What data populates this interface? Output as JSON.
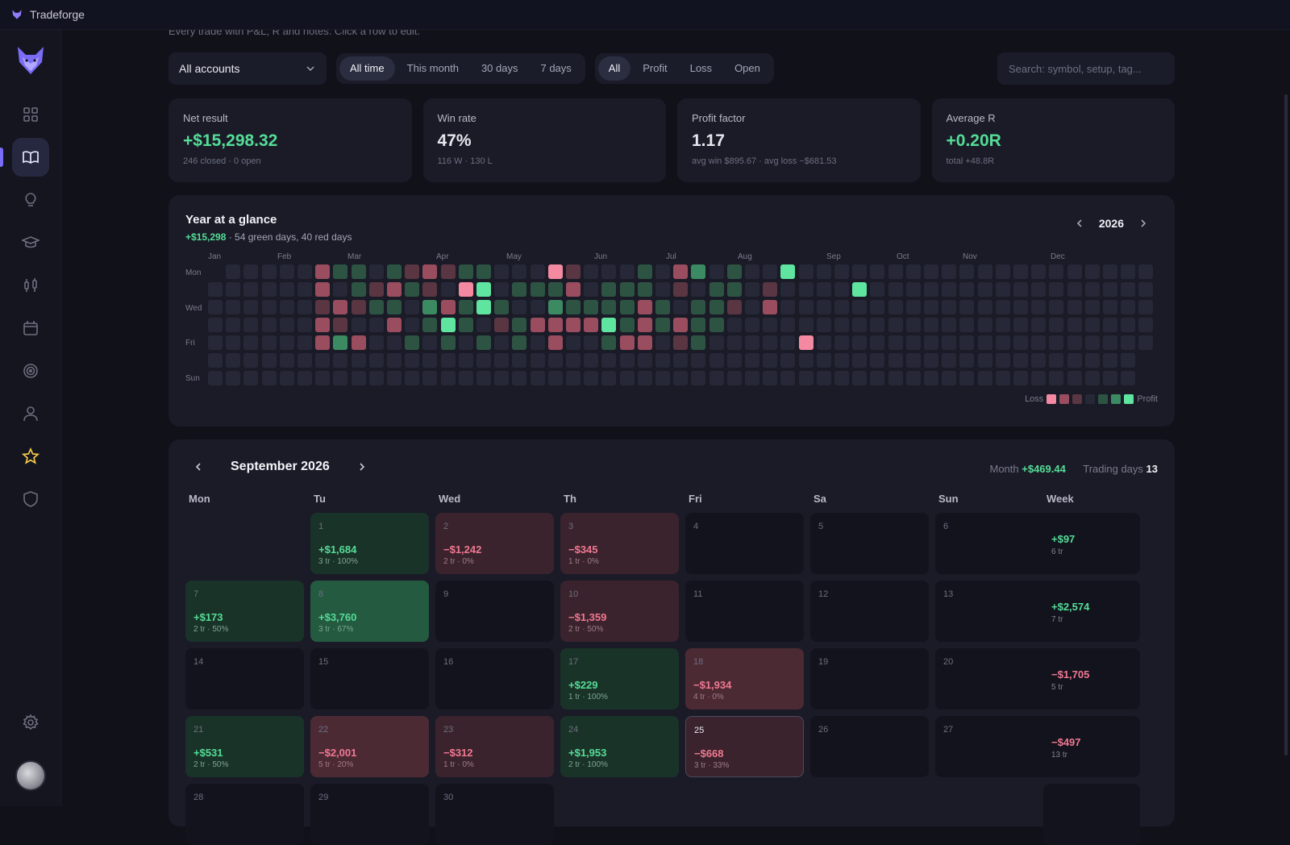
{
  "app": {
    "title": "Tradeforge"
  },
  "page": {
    "subtitle": "Every trade with P&L, R and notes. Click a row to edit."
  },
  "filters": {
    "account": "All accounts",
    "periods": [
      "All time",
      "This month",
      "30 days",
      "7 days"
    ],
    "period_selected": "All time",
    "outcomes": [
      "All",
      "Profit",
      "Loss",
      "Open"
    ],
    "outcome_selected": "All",
    "search_placeholder": "Search: symbol, setup, tag..."
  },
  "stats": [
    {
      "label": "Net result",
      "value": "+$15,298.32",
      "sub": "246 closed · 0 open",
      "tone": "green"
    },
    {
      "label": "Win rate",
      "value": "47%",
      "sub": "116 W · 130 L",
      "tone": "plain"
    },
    {
      "label": "Profit factor",
      "value": "1.17",
      "sub": "avg win $895.67 · avg loss −$681.53",
      "tone": "plain"
    },
    {
      "label": "Average R",
      "value": "+0.20R",
      "sub": "total +48.8R",
      "tone": "green"
    }
  ],
  "year": {
    "title": "Year at a glance",
    "total": "+$15,298",
    "summary": " · 54 green days, 40 red days",
    "year": "2026",
    "months": [
      "Jan",
      "Feb",
      "Mar",
      "Apr",
      "May",
      "Jun",
      "Jul",
      "Aug",
      "Sep",
      "Oct",
      "Nov",
      "Dec"
    ],
    "day_labels": [
      "Mon",
      "Wed",
      "Fri",
      "Sun"
    ],
    "legend_loss": "Loss",
    "legend_profit": "Profit",
    "heatmap_weeks": [
      "       ",
      "       ",
      "       ",
      "       ",
      "  ... ",
      "       ",
      "       ",
      "       ",
      "       ",
      "       ",
      "       ",
      "       ",
      " ...  ",
      "       ",
      "       ",
      " ...  ",
      "       ",
      "       ",
      "       ",
      "       ",
      "       ",
      "       ",
      "       ",
      "       ",
      "       ",
      "       ",
      "       ",
      "       ",
      "       ",
      "       ",
      "       ",
      "       ",
      "       ",
      "       ",
      "       ",
      "       ",
      "       ",
      "       ",
      "       ",
      "       ",
      "       ",
      "       ",
      "       ",
      "       ",
      "       ",
      "       ",
      "       ",
      "       ",
      "       ",
      "       ",
      "       ",
      "       ",
      "       ",
      "       "
    ],
    "heatmap_grid": [
      "......RGG.GrRrGG...Gr...G.Rg.G.............",
      "......R.GrRGr.GG.GGGR.GGG.r.GG.r...........",
      "......rRrGG.gRGrG..gGGGGRG.GGr.R...........",
      "......Rr..R.G.G.rGRRRRGGRGRGG..............",
      "......RgR..G.G.G.G.R..GRR.rG...............",
      "...........................................",
      "..........................................."
    ]
  },
  "calendar": {
    "month_title": "September 2026",
    "month_label": "Month",
    "month_total": "+$469.44",
    "trading_days_label": "Trading days",
    "trading_days": "13",
    "columns": [
      "Mon",
      "Tu",
      "Wed",
      "Th",
      "Fri",
      "Sa",
      "Sun",
      "Week"
    ],
    "weeks": [
      {
        "days": [
          null,
          {
            "n": "1",
            "pnl": "+$1,684",
            "meta": "3 tr · 100%",
            "tone": "g1"
          },
          {
            "n": "2",
            "pnl": "−$1,242",
            "meta": "2 tr · 0%",
            "tone": "r1"
          },
          {
            "n": "3",
            "pnl": "−$345",
            "meta": "1 tr · 0%",
            "tone": "r1"
          },
          {
            "n": "4"
          },
          {
            "n": "5"
          },
          {
            "n": "6"
          }
        ],
        "week": {
          "pnl": "+$97",
          "meta": "6 tr",
          "tone": "green"
        }
      },
      {
        "days": [
          {
            "n": "7",
            "pnl": "+$173",
            "meta": "2 tr · 50%",
            "tone": "g1"
          },
          {
            "n": "8",
            "pnl": "+$3,760",
            "meta": "3 tr · 67%",
            "tone": "g2"
          },
          {
            "n": "9"
          },
          {
            "n": "10",
            "pnl": "−$1,359",
            "meta": "2 tr · 50%",
            "tone": "r1"
          },
          {
            "n": "11"
          },
          {
            "n": "12"
          },
          {
            "n": "13"
          }
        ],
        "week": {
          "pnl": "+$2,574",
          "meta": "7 tr",
          "tone": "green"
        }
      },
      {
        "days": [
          {
            "n": "14"
          },
          {
            "n": "15"
          },
          {
            "n": "16"
          },
          {
            "n": "17",
            "pnl": "+$229",
            "meta": "1 tr · 100%",
            "tone": "g1"
          },
          {
            "n": "18",
            "pnl": "−$1,934",
            "meta": "4 tr · 0%",
            "tone": "r2"
          },
          {
            "n": "19"
          },
          {
            "n": "20"
          }
        ],
        "week": {
          "pnl": "−$1,705",
          "meta": "5 tr",
          "tone": "red"
        }
      },
      {
        "days": [
          {
            "n": "21",
            "pnl": "+$531",
            "meta": "2 tr · 50%",
            "tone": "g1"
          },
          {
            "n": "22",
            "pnl": "−$2,001",
            "meta": "5 tr · 20%",
            "tone": "r2"
          },
          {
            "n": "23",
            "pnl": "−$312",
            "meta": "1 tr · 0%",
            "tone": "r1"
          },
          {
            "n": "24",
            "pnl": "+$1,953",
            "meta": "2 tr · 100%",
            "tone": "g1"
          },
          {
            "n": "25",
            "pnl": "−$668",
            "meta": "3 tr · 33%",
            "tone": "r1",
            "today": true
          },
          {
            "n": "26"
          },
          {
            "n": "27"
          }
        ],
        "week": {
          "pnl": "−$497",
          "meta": "13 tr",
          "tone": "red"
        }
      },
      {
        "days": [
          {
            "n": "28"
          },
          {
            "n": "29"
          },
          {
            "n": "30"
          }
        ],
        "week": null
      }
    ]
  },
  "colors": {
    "accent": "#7b6cf6",
    "profit": "#55dc97",
    "loss": "#f07892",
    "star": "#f2c94c"
  }
}
